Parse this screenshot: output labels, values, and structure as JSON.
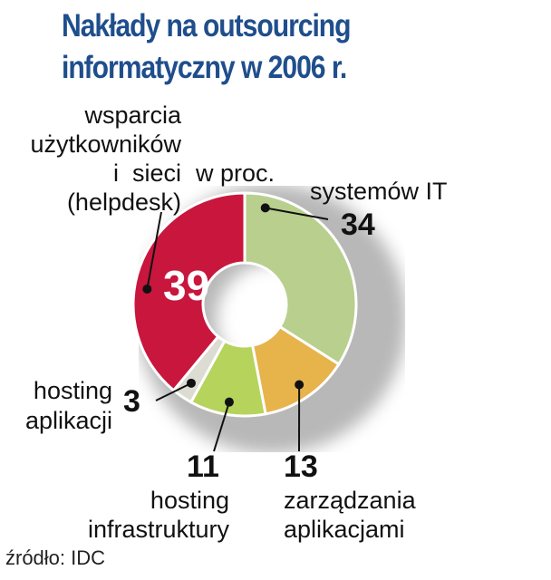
{
  "title_line1": "Nakłady na outsourcing",
  "title_line2": "informatyczny w 2006 r.",
  "unit": "w proc.",
  "source": "źródło: IDC",
  "chart_data": {
    "type": "pie",
    "donut": true,
    "title": "Nakłady na outsourcing informatyczny w 2006 r.",
    "unit": "w proc.",
    "categories": [
      "systemów IT",
      "zarządzania aplikacjami",
      "hosting infrastruktury",
      "hosting aplikacji",
      "wsparcia użytkowników i sieci (helpdesk)"
    ],
    "values": [
      34,
      13,
      11,
      3,
      39
    ],
    "label_lines": [
      [
        "systemów IT"
      ],
      [
        "zarządzania",
        "aplikacjami"
      ],
      [
        "hosting",
        "infrastruktury"
      ],
      [
        "hosting",
        "aplikacji"
      ],
      [
        "wsparcia",
        "użytkowników",
        "i  sieci",
        "(helpdesk)"
      ]
    ],
    "colors": [
      "#b9cf8e",
      "#e7b34b",
      "#b6d35c",
      "#dcdcd2",
      "#c8163d"
    ]
  }
}
